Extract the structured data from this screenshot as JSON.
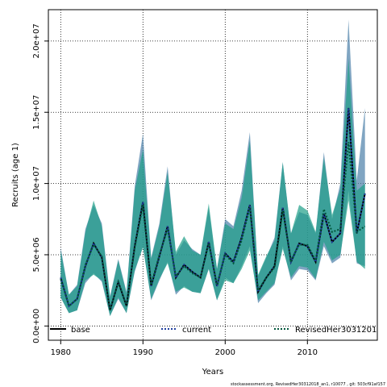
{
  "chart_data": {
    "type": "line",
    "x_label": "Years",
    "y_label": "Recruits (age 1)",
    "footer": "stockassessment.org, RevisedHer30312018_an1, r10077 , git: 503cf91af157",
    "x": [
      1980,
      1981,
      1982,
      1983,
      1984,
      1985,
      1986,
      1987,
      1988,
      1989,
      1990,
      1991,
      1992,
      1993,
      1994,
      1995,
      1996,
      1997,
      1998,
      1999,
      2000,
      2001,
      2002,
      2003,
      2004,
      2005,
      2006,
      2007,
      2008,
      2009,
      2010,
      2011,
      2012,
      2013,
      2014,
      2015,
      2016,
      2017
    ],
    "xlim": [
      1978.5,
      2018.5
    ],
    "xticks": [
      1980,
      1990,
      2000,
      2010
    ],
    "ylim": [
      -1000000.0,
      22200000.0
    ],
    "yticks": [
      {
        "value": 0,
        "label": "0.0e+00"
      },
      {
        "value": 5000000.0,
        "label": "5.0e+06"
      },
      {
        "value": 10000000.0,
        "label": "1.0e+07"
      },
      {
        "value": 15000000.0,
        "label": "1.5e+07"
      },
      {
        "value": 20000000.0,
        "label": "2.0e+07"
      }
    ],
    "grid": true,
    "legend": "bottom",
    "series": [
      {
        "name": "base",
        "color": "#000000",
        "dash": "solid",
        "values": [
          3400000.0,
          1400000.0,
          1900000.0,
          4200000.0,
          5800000.0,
          4800000.0,
          1100000.0,
          3100000.0,
          1400000.0,
          5600000.0,
          8700000.0,
          2800000.0,
          4900000.0,
          7000000.0,
          3400000.0,
          4300000.0,
          3800000.0,
          3400000.0,
          5900000.0,
          2800000.0,
          5100000.0,
          4500000.0,
          6200000.0,
          8500000.0,
          2400000.0,
          3400000.0,
          4200000.0,
          8300000.0,
          4500000.0,
          5800000.0,
          5600000.0,
          4500000.0,
          7900000.0,
          5900000.0,
          6500000.0,
          15300000.0,
          6500000.0,
          9300000.0
        ]
      },
      {
        "name": "current",
        "color": "#1f3f9f",
        "dash": "dotted",
        "band_color": "#4a7fa8",
        "values": [
          3400000.0,
          1400000.0,
          1900000.0,
          4200000.0,
          5800000.0,
          4800000.0,
          1100000.0,
          3100000.0,
          1400000.0,
          5600000.0,
          8700000.0,
          2800000.0,
          4900000.0,
          7000000.0,
          3400000.0,
          4300000.0,
          3800000.0,
          3400000.0,
          5900000.0,
          2800000.0,
          5100000.0,
          4500000.0,
          6200000.0,
          8500000.0,
          2400000.0,
          3400000.0,
          4200000.0,
          8300000.0,
          4500000.0,
          5800000.0,
          5600000.0,
          4500000.0,
          7900000.0,
          5900000.0,
          6500000.0,
          15300000.0,
          6500000.0,
          9300000.0
        ],
        "upper": [
          5500000.0,
          2200000.0,
          2900000.0,
          6800000.0,
          8500000.0,
          7200000.0,
          2100000.0,
          4700000.0,
          2400000.0,
          9800000.0,
          13500000.0,
          4800000.0,
          7200000.0,
          11200000.0,
          5000000.0,
          6000000.0,
          5400000.0,
          5000000.0,
          8300000.0,
          4000000.0,
          7500000.0,
          7000000.0,
          9500000.0,
          13600000.0,
          3500000.0,
          4800000.0,
          6200000.0,
          11500000.0,
          6500000.0,
          8000000.0,
          7800000.0,
          6500000.0,
          12200000.0,
          7500000.0,
          10000000.0,
          21500000.0,
          10200000.0,
          15300000.0
        ],
        "lower": [
          2000000.0,
          900000.0,
          1100000.0,
          3000000.0,
          3700000.0,
          3100000.0,
          700000.0,
          1900000.0,
          900000.0,
          3800000.0,
          5600000.0,
          1800000.0,
          3200000.0,
          4500000.0,
          2200000.0,
          2800000.0,
          2400000.0,
          2300000.0,
          4000000.0,
          1800000.0,
          3400000.0,
          3000000.0,
          4200000.0,
          5600000.0,
          1600000.0,
          2300000.0,
          2900000.0,
          5600000.0,
          3200000.0,
          4000000.0,
          3900000.0,
          3200000.0,
          5600000.0,
          4400000.0,
          4800000.0,
          9500000.0,
          4400000.0,
          4200000.0
        ]
      },
      {
        "name": "RevisedHer3031201",
        "color": "#00553a",
        "dash": "dotted",
        "band_color": "#1e9e88",
        "values": [
          3300000.0,
          1400000.0,
          1900000.0,
          4300000.0,
          5700000.0,
          4900000.0,
          1100000.0,
          3100000.0,
          1400000.0,
          5500000.0,
          8500000.0,
          2900000.0,
          5000000.0,
          6800000.0,
          3500000.0,
          4200000.0,
          3700000.0,
          3400000.0,
          5800000.0,
          2900000.0,
          5000000.0,
          4400000.0,
          6000000.0,
          8300000.0,
          2500000.0,
          3400000.0,
          4100000.0,
          8100000.0,
          4600000.0,
          5700000.0,
          5700000.0,
          4600000.0,
          8200000.0,
          6600000.0,
          6800000.0,
          12900000.0,
          6600000.0,
          7000000.0
        ],
        "upper": [
          5300000.0,
          2200000.0,
          2800000.0,
          6600000.0,
          8800000.0,
          7000000.0,
          2000000.0,
          4600000.0,
          2300000.0,
          9500000.0,
          12400000.0,
          4700000.0,
          7000000.0,
          10800000.0,
          5200000.0,
          6300000.0,
          5300000.0,
          5000000.0,
          8600000.0,
          4000000.0,
          7200000.0,
          6800000.0,
          9000000.0,
          13000000.0,
          3600000.0,
          4900000.0,
          6000000.0,
          11500000.0,
          6500000.0,
          8500000.0,
          8100000.0,
          6600000.0,
          11800000.0,
          7800000.0,
          9600000.0,
          18800000.0,
          9500000.0,
          10000000.0
        ],
        "lower": [
          2000000.0,
          900000.0,
          1100000.0,
          3200000.0,
          3600000.0,
          3200000.0,
          700000.0,
          2000000.0,
          900000.0,
          3900000.0,
          5500000.0,
          1900000.0,
          3300000.0,
          4400000.0,
          2400000.0,
          2700000.0,
          2400000.0,
          2300000.0,
          4000000.0,
          1800000.0,
          3200000.0,
          3000000.0,
          4000000.0,
          5300000.0,
          1800000.0,
          2400000.0,
          3000000.0,
          5400000.0,
          3400000.0,
          4200000.0,
          4100000.0,
          3300000.0,
          5900000.0,
          4600000.0,
          5000000.0,
          8800000.0,
          4500000.0,
          4000000.0
        ]
      }
    ]
  }
}
